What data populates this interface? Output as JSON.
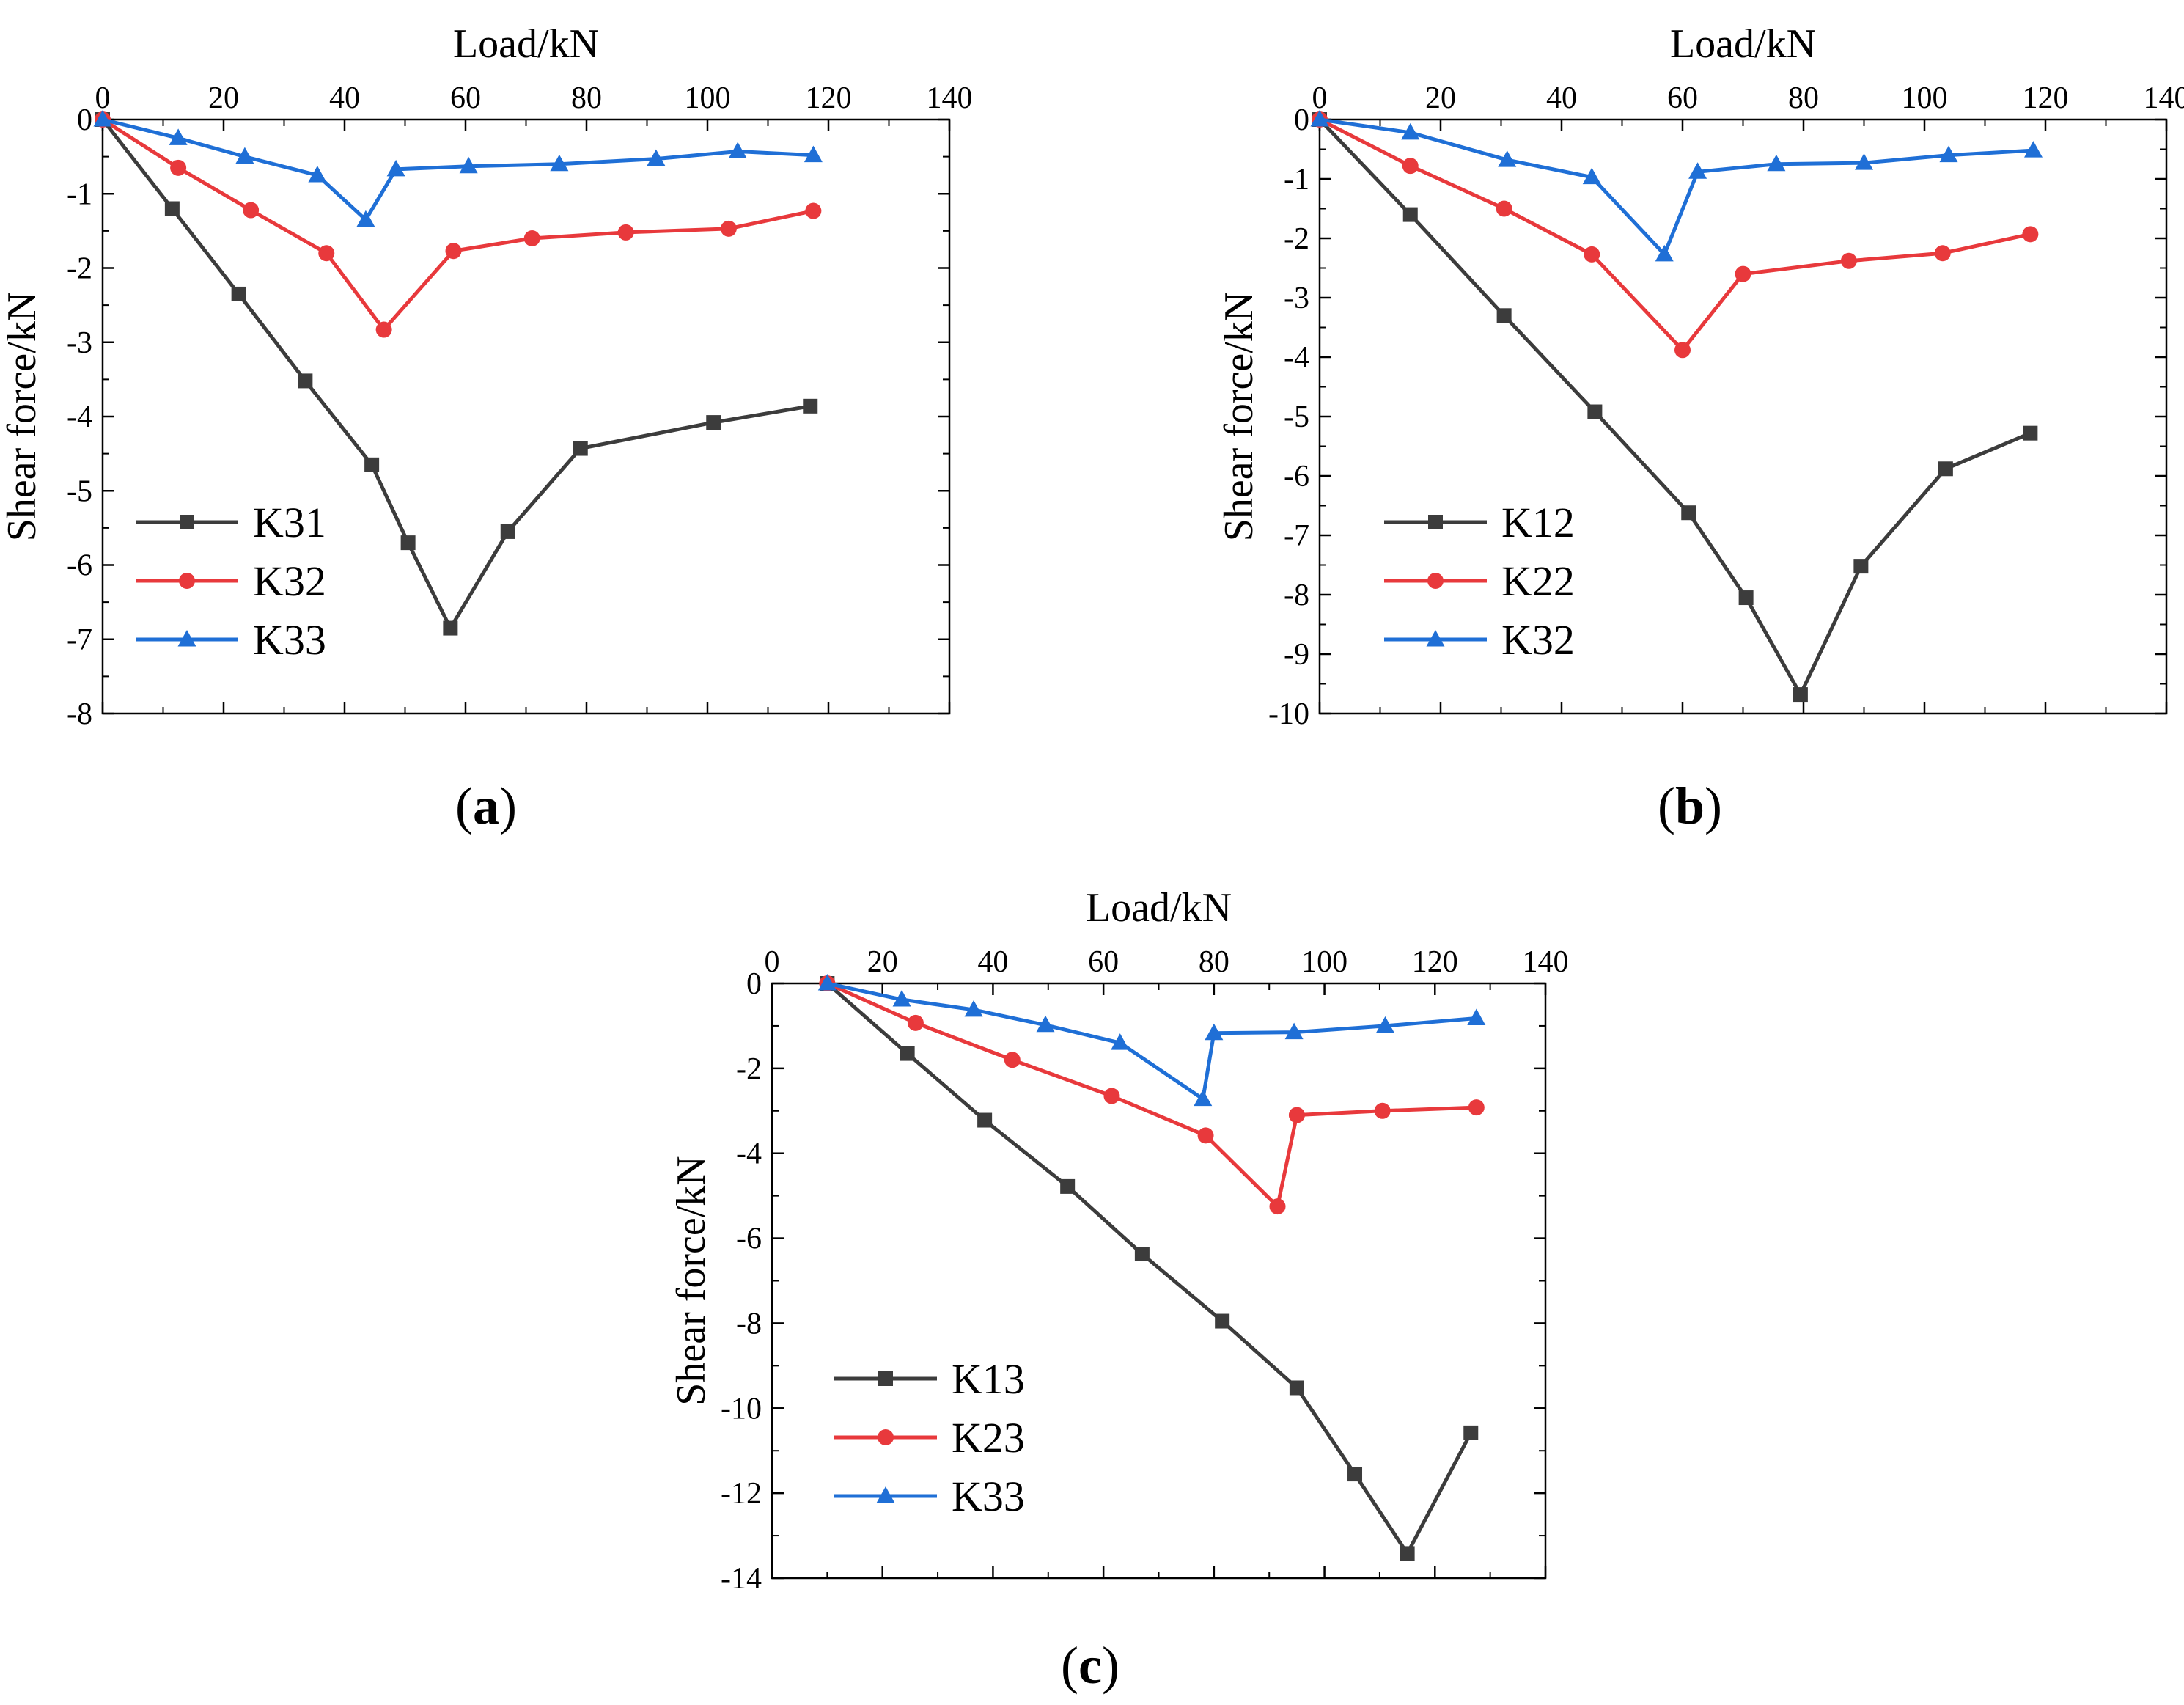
{
  "figure": {
    "panel_labels": [
      {
        "open": "(",
        "letter": "a",
        "close": ")"
      },
      {
        "open": "(",
        "letter": "b",
        "close": ")"
      },
      {
        "open": "(",
        "letter": "c",
        "close": ")"
      }
    ]
  },
  "colors": {
    "black_series": "#3c3c3c",
    "red_series": "#e8393c",
    "blue_series": "#1f6fd6",
    "axis": "#000000"
  },
  "chart_data": [
    {
      "type": "line",
      "panel": "a",
      "xlabel": "Load/kN",
      "ylabel": "Shear force/kN",
      "xlim": [
        0,
        140
      ],
      "ylim": [
        -8,
        0
      ],
      "x_ticks": [
        0,
        20,
        40,
        60,
        80,
        100,
        120,
        140
      ],
      "x_tick_labels": [
        "0",
        "20",
        "40",
        "60",
        "80",
        "100",
        "120",
        "140"
      ],
      "y_ticks": [
        0,
        -1,
        -2,
        -3,
        -4,
        -5,
        -6,
        -7,
        -8
      ],
      "y_tick_labels": [
        "0",
        "-1",
        "-2",
        "-3",
        "-4",
        "-5",
        "-6",
        "-7",
        "-8"
      ],
      "legend_position": "bottom-left",
      "series": [
        {
          "name": "K31",
          "color": "#3c3c3c",
          "marker": "square",
          "x": [
            0,
            11.5,
            22.5,
            33.5,
            44.5,
            50.5,
            57.5,
            67,
            79,
            101,
            117
          ],
          "y": [
            0,
            -1.2,
            -2.35,
            -3.52,
            -4.65,
            -5.7,
            -6.85,
            -5.55,
            -4.43,
            -4.08,
            -3.86
          ]
        },
        {
          "name": "K32",
          "color": "#e8393c",
          "marker": "circle",
          "x": [
            0,
            12.5,
            24.5,
            37,
            46.5,
            58,
            71,
            86.5,
            103.5,
            117.5
          ],
          "y": [
            0,
            -0.65,
            -1.22,
            -1.8,
            -2.83,
            -1.77,
            -1.6,
            -1.52,
            -1.47,
            -1.23
          ]
        },
        {
          "name": "K33",
          "color": "#1f6fd6",
          "marker": "triangle",
          "x": [
            0,
            12.5,
            23.5,
            35.5,
            43.5,
            48.5,
            60.5,
            75.5,
            91.5,
            105,
            117.5
          ],
          "y": [
            0,
            -0.25,
            -0.5,
            -0.75,
            -1.35,
            -0.67,
            -0.63,
            -0.6,
            -0.53,
            -0.43,
            -0.48
          ]
        }
      ]
    },
    {
      "type": "line",
      "panel": "b",
      "xlabel": "Load/kN",
      "ylabel": "Shear force/kN",
      "xlim": [
        0,
        140
      ],
      "ylim": [
        -10,
        0
      ],
      "x_ticks": [
        0,
        20,
        40,
        60,
        80,
        100,
        120,
        140
      ],
      "x_tick_labels": [
        "0",
        "20",
        "40",
        "60",
        "80",
        "100",
        "120",
        "140"
      ],
      "y_ticks": [
        0,
        -1,
        -2,
        -3,
        -4,
        -5,
        -6,
        -7,
        -8,
        -9,
        -10
      ],
      "y_tick_labels": [
        "0",
        "-1",
        "-2",
        "-3",
        "-4",
        "-5",
        "-6",
        "-7",
        "-8",
        "-9",
        "-10"
      ],
      "legend_position": "bottom-left",
      "series": [
        {
          "name": "K12",
          "color": "#3c3c3c",
          "marker": "square",
          "x": [
            0,
            15,
            30.5,
            45.5,
            61,
            70.5,
            79.5,
            89.5,
            103.5,
            117.5
          ],
          "y": [
            0,
            -1.6,
            -3.3,
            -4.92,
            -6.62,
            -8.05,
            -9.68,
            -7.52,
            -5.88,
            -5.28
          ]
        },
        {
          "name": "K22",
          "color": "#e8393c",
          "marker": "circle",
          "x": [
            0,
            15,
            30.5,
            45,
            60,
            70,
            87.5,
            103,
            117.5
          ],
          "y": [
            0,
            -0.78,
            -1.5,
            -2.27,
            -3.88,
            -2.6,
            -2.38,
            -2.25,
            -1.93
          ]
        },
        {
          "name": "K32",
          "color": "#1f6fd6",
          "marker": "triangle",
          "x": [
            0,
            15,
            31,
            45,
            57,
            62.5,
            75.5,
            90,
            104,
            118
          ],
          "y": [
            0,
            -0.22,
            -0.68,
            -0.97,
            -2.27,
            -0.88,
            -0.75,
            -0.73,
            -0.6,
            -0.52
          ]
        }
      ]
    },
    {
      "type": "line",
      "panel": "c",
      "xlabel": "Load/kN",
      "ylabel": "Shear force/kN",
      "xlim": [
        0,
        140
      ],
      "ylim": [
        -14,
        0
      ],
      "x_ticks": [
        0,
        20,
        40,
        60,
        80,
        100,
        120,
        140
      ],
      "x_tick_labels": [
        "0",
        "20",
        "40",
        "60",
        "80",
        "100",
        "120",
        "140"
      ],
      "y_ticks": [
        0,
        -2,
        -4,
        -6,
        -8,
        -10,
        -12,
        -14
      ],
      "y_tick_labels": [
        "0",
        "-2",
        "-4",
        "-6",
        "-8",
        "-10",
        "-12",
        "-14"
      ],
      "legend_position": "bottom-left",
      "series": [
        {
          "name": "K13",
          "color": "#3c3c3c",
          "marker": "square",
          "x": [
            10,
            24.5,
            38.5,
            53.5,
            67,
            81.5,
            95,
            105.5,
            115,
            126.5
          ],
          "y": [
            0,
            -1.65,
            -3.22,
            -4.78,
            -6.37,
            -7.95,
            -9.52,
            -11.55,
            -13.42,
            -10.58
          ]
        },
        {
          "name": "K23",
          "color": "#e8393c",
          "marker": "circle",
          "x": [
            10,
            26,
            43.5,
            61.5,
            78.5,
            91.5,
            95,
            110.5,
            127.5
          ],
          "y": [
            0,
            -0.93,
            -1.8,
            -2.65,
            -3.58,
            -5.25,
            -3.1,
            -3.0,
            -2.92
          ]
        },
        {
          "name": "K33",
          "color": "#1f6fd6",
          "marker": "triangle",
          "x": [
            10,
            23.5,
            36.5,
            49.5,
            63,
            78,
            80,
            94.5,
            111,
            127.5
          ],
          "y": [
            0,
            -0.38,
            -0.62,
            -0.98,
            -1.4,
            -2.72,
            -1.17,
            -1.15,
            -1.0,
            -0.82
          ]
        }
      ]
    }
  ]
}
